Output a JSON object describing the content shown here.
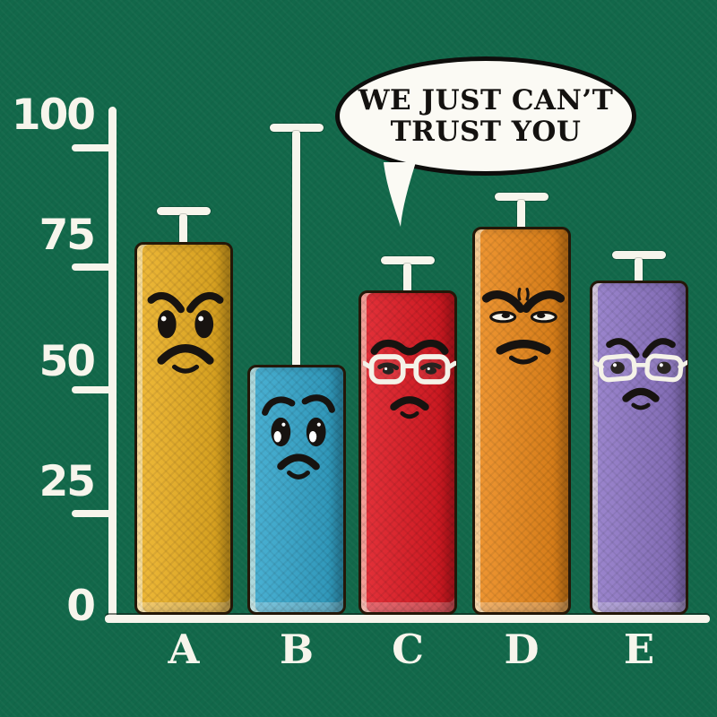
{
  "colors": {
    "background": "#12684a",
    "axis": "#f7f5ec",
    "bar_outline": "#241708",
    "bubble_fill": "#fbfaf4",
    "bubble_outline": "#0e0e0c",
    "bubble_text": "#141210",
    "label_text": "#f7f5ec"
  },
  "bubble": {
    "line1": "WE JUST CAN’T",
    "line2": "TRUST YOU"
  },
  "axis": {
    "ytick_labels": [
      "100",
      "75",
      "50",
      "25",
      "0"
    ]
  },
  "chart_data": {
    "type": "bar",
    "title": "",
    "xlabel": "",
    "ylabel": "",
    "categories": [
      "A",
      "B",
      "C",
      "D",
      "E"
    ],
    "values": [
      76,
      51,
      66,
      79,
      68
    ],
    "error_bar_tops": [
      83,
      100,
      73,
      86,
      74
    ],
    "ylim": [
      0,
      100
    ],
    "yticks": [
      0,
      25,
      50,
      75,
      100
    ],
    "grid": false,
    "legend": false,
    "bar_colors": [
      "#edb123",
      "#36a9cf",
      "#e11b24",
      "#ee8b1c",
      "#9179c9"
    ],
    "bar_moods": [
      "angry",
      "worried",
      "skeptical-wearing-glasses",
      "stern",
      "angry-wearing-glasses"
    ],
    "annotation": {
      "text": "WE JUST CAN’T TRUST YOU",
      "type": "speech-bubble",
      "points_at": "B"
    }
  }
}
